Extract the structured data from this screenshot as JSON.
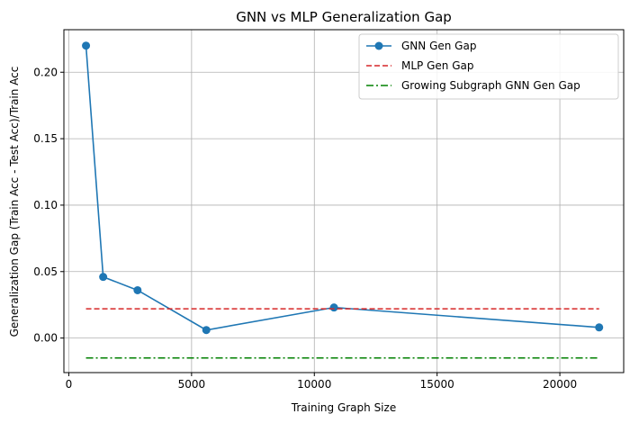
{
  "chart_data": {
    "type": "line",
    "title": "GNN vs MLP Generalization Gap",
    "xlabel": "Training Graph Size",
    "ylabel": "Generalization Gap (Train Acc - Test Acc)/Train Acc",
    "xlim": [
      -200,
      22600
    ],
    "ylim": [
      -0.026,
      0.232
    ],
    "xticks": [
      0,
      5000,
      10000,
      15000,
      20000
    ],
    "xtick_labels": [
      "0",
      "5000",
      "10000",
      "15000",
      "20000"
    ],
    "yticks": [
      0.0,
      0.05,
      0.1,
      0.15,
      0.2
    ],
    "ytick_labels": [
      "0.00",
      "0.05",
      "0.10",
      "0.15",
      "0.20"
    ],
    "grid": true,
    "legend_position": "top-right",
    "series": [
      {
        "name": "GNN Gen Gap",
        "style": "solid-marker",
        "color": "#1f77b4",
        "x": [
          700,
          1400,
          2800,
          5600,
          10800,
          21600
        ],
        "y": [
          0.22,
          0.046,
          0.036,
          0.006,
          0.023,
          0.008
        ]
      },
      {
        "name": "MLP Gen Gap",
        "style": "dashed",
        "color": "#d62728",
        "x": [
          700,
          21600
        ],
        "y": [
          0.022,
          0.022
        ]
      },
      {
        "name": "Growing Subgraph GNN Gen Gap",
        "style": "dashdot",
        "color": "#008000",
        "x": [
          700,
          21600
        ],
        "y": [
          -0.015,
          -0.015
        ]
      }
    ]
  }
}
